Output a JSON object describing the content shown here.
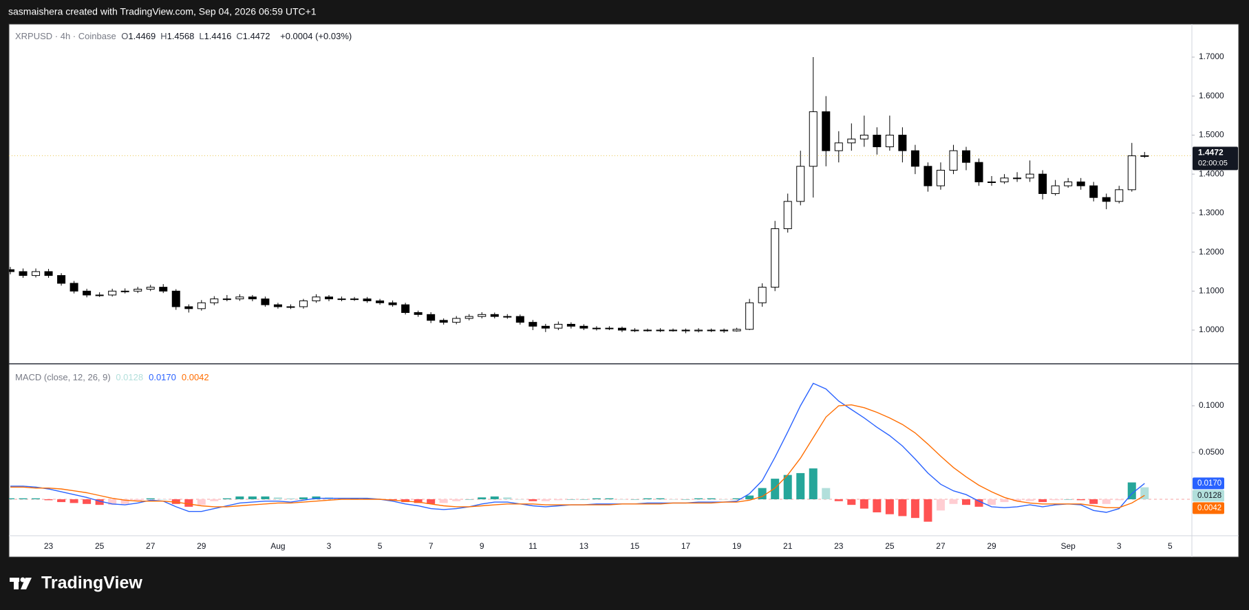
{
  "header": {
    "text": "sasmaishera created with TradingView.com, Sep 04, 2026 06:59 UTC+1"
  },
  "footer": {
    "brand": "TradingView"
  },
  "chart_data": [
    {
      "type": "candlestick",
      "symbol": "XRPUSD · 4h · Coinbase",
      "ohlc_labels": [
        "O",
        "H",
        "L",
        "C"
      ],
      "change_label": "+0.0004 (+0.03%)",
      "countdown": "02:00:05",
      "up_color": "#ffffff",
      "down_color": "#000000",
      "border_color": "#000000",
      "last_price_line_color": "#e8c44a",
      "grid": false,
      "categories": [
        null,
        null,
        null,
        "23",
        null,
        null,
        null,
        "25",
        null,
        null,
        null,
        "27",
        null,
        null,
        null,
        "29",
        null,
        null,
        null,
        null,
        null,
        "Aug",
        null,
        null,
        null,
        "3",
        null,
        null,
        null,
        "5",
        null,
        null,
        null,
        "7",
        null,
        null,
        null,
        "9",
        null,
        null,
        null,
        "11",
        null,
        null,
        null,
        "13",
        null,
        null,
        null,
        "15",
        null,
        null,
        null,
        "17",
        null,
        null,
        null,
        "19",
        null,
        null,
        null,
        "21",
        null,
        null,
        null,
        "23",
        null,
        null,
        null,
        "25",
        null,
        null,
        null,
        "27",
        null,
        null,
        null,
        "29",
        null,
        null,
        null,
        null,
        null,
        "Sep",
        null,
        null,
        null,
        "3",
        null,
        null,
        null,
        "5",
        null
      ],
      "open": [
        1.155,
        1.15,
        1.14,
        1.15,
        1.14,
        1.12,
        1.1,
        1.09,
        1.09,
        1.1,
        1.1,
        1.105,
        1.11,
        1.1,
        1.06,
        1.055,
        1.07,
        1.08,
        1.08,
        1.085,
        1.08,
        1.065,
        1.06,
        1.06,
        1.075,
        1.085,
        1.08,
        1.08,
        1.08,
        1.075,
        1.07,
        1.065,
        1.045,
        1.04,
        1.025,
        1.02,
        1.03,
        1.035,
        1.04,
        1.035,
        1.035,
        1.02,
        1.01,
        1.005,
        1.015,
        1.01,
        1.005,
        1.005,
        1.005,
        1.0,
        1.0,
        1.0,
        1.0,
        1.0,
        0.998,
        1.0,
        1.0,
        0.998,
        1.002,
        1.07,
        1.11,
        1.26,
        1.33,
        1.42,
        1.56,
        1.46,
        1.48,
        1.49,
        1.5,
        1.47,
        1.5,
        1.46,
        1.42,
        1.37,
        1.41,
        1.46,
        1.43,
        1.38,
        1.38,
        1.39,
        1.39,
        1.4,
        1.35,
        1.37,
        1.38,
        1.37,
        1.34,
        1.33,
        1.36,
        1.4469,
        null,
        null,
        null
      ],
      "high": [
        1.162,
        1.158,
        1.158,
        1.157,
        1.146,
        1.126,
        1.106,
        1.097,
        1.106,
        1.107,
        1.111,
        1.116,
        1.118,
        1.105,
        1.066,
        1.077,
        1.087,
        1.09,
        1.092,
        1.09,
        1.086,
        1.07,
        1.066,
        1.08,
        1.092,
        1.09,
        1.086,
        1.085,
        1.085,
        1.08,
        1.076,
        1.07,
        1.05,
        1.046,
        1.03,
        1.036,
        1.041,
        1.046,
        1.045,
        1.041,
        1.04,
        1.026,
        1.016,
        1.022,
        1.02,
        1.015,
        1.01,
        1.01,
        1.009,
        1.005,
        1.004,
        1.005,
        1.004,
        1.004,
        1.005,
        1.004,
        1.004,
        1.006,
        1.08,
        1.12,
        1.28,
        1.35,
        1.46,
        1.7,
        1.6,
        1.51,
        1.53,
        1.55,
        1.52,
        1.55,
        1.52,
        1.475,
        1.43,
        1.43,
        1.475,
        1.47,
        1.44,
        1.395,
        1.4,
        1.405,
        1.435,
        1.41,
        1.385,
        1.39,
        1.39,
        1.38,
        1.35,
        1.37,
        1.48,
        1.4568,
        null,
        null,
        null
      ],
      "low": [
        1.143,
        1.134,
        1.135,
        1.134,
        1.114,
        1.094,
        1.084,
        1.085,
        1.086,
        1.094,
        1.095,
        1.1,
        1.095,
        1.052,
        1.045,
        1.05,
        1.064,
        1.074,
        1.075,
        1.074,
        1.06,
        1.055,
        1.054,
        1.055,
        1.07,
        1.074,
        1.074,
        1.075,
        1.07,
        1.065,
        1.06,
        1.04,
        1.034,
        1.018,
        1.014,
        1.015,
        1.025,
        1.03,
        1.03,
        1.029,
        1.014,
        1.0,
        0.995,
        1.0,
        1.004,
        1.0,
        0.999,
        1.0,
        0.995,
        0.995,
        0.996,
        0.995,
        0.996,
        0.992,
        0.994,
        0.995,
        0.993,
        0.996,
        1.0,
        1.06,
        1.1,
        1.25,
        1.32,
        1.34,
        1.42,
        1.43,
        1.46,
        1.47,
        1.45,
        1.46,
        1.43,
        1.4,
        1.355,
        1.36,
        1.4,
        1.41,
        1.37,
        1.37,
        1.375,
        1.38,
        1.38,
        1.335,
        1.345,
        1.365,
        1.36,
        1.33,
        1.31,
        1.325,
        1.355,
        1.4416,
        null,
        null,
        null
      ],
      "close": [
        1.15,
        1.14,
        1.15,
        1.14,
        1.12,
        1.1,
        1.09,
        1.09,
        1.1,
        1.1,
        1.105,
        1.11,
        1.1,
        1.06,
        1.055,
        1.07,
        1.08,
        1.08,
        1.085,
        1.08,
        1.065,
        1.06,
        1.06,
        1.075,
        1.085,
        1.08,
        1.08,
        1.08,
        1.075,
        1.07,
        1.065,
        1.045,
        1.04,
        1.025,
        1.02,
        1.03,
        1.035,
        1.04,
        1.035,
        1.035,
        1.02,
        1.01,
        1.005,
        1.015,
        1.01,
        1.005,
        1.005,
        1.005,
        1.0,
        1.0,
        1.0,
        1.0,
        1.0,
        0.998,
        1.0,
        1.0,
        0.998,
        1.002,
        1.07,
        1.11,
        1.26,
        1.33,
        1.42,
        1.56,
        1.46,
        1.48,
        1.49,
        1.5,
        1.47,
        1.5,
        1.46,
        1.42,
        1.37,
        1.41,
        1.46,
        1.43,
        1.38,
        1.38,
        1.39,
        1.39,
        1.4,
        1.35,
        1.37,
        1.38,
        1.37,
        1.34,
        1.33,
        1.36,
        1.4469,
        1.4472,
        null,
        null,
        null
      ],
      "ylim": [
        0.9136,
        1.7847
      ],
      "yticks": [
        {
          "value": 1,
          "label": "1.0000"
        },
        {
          "value": 1.1,
          "label": "1.1000"
        },
        {
          "value": 1.2,
          "label": "1.2000"
        },
        {
          "value": 1.3,
          "label": "1.3000"
        },
        {
          "value": 1.4,
          "label": "1.4000"
        },
        {
          "value": 1.5,
          "label": "1.5000"
        },
        {
          "value": 1.6,
          "label": "1.6000"
        },
        {
          "value": 1.7,
          "label": "1.7000"
        }
      ]
    },
    {
      "type": "macd",
      "title": "MACD (close, 12, 26, 9)",
      "grid": false,
      "histogram": {
        "color_up": "#26a69a",
        "color_up_fading": "#b2dfdb",
        "color_down": "#ff5252",
        "color_down_fading": "#ffcdd2",
        "values": [
          0.001,
          0.001,
          0.001,
          -0.001,
          -0.003,
          -0.004,
          -0.005,
          -0.006,
          -0.006,
          -0.005,
          -0.002,
          0.001,
          0,
          -0.005,
          -0.008,
          -0.006,
          -0.002,
          0.001,
          0.003,
          0.003,
          0.003,
          0.002,
          0.001,
          0.002,
          0.003,
          0.002,
          0.001,
          0.001,
          0.001,
          0,
          -0.001,
          -0.003,
          -0.004,
          -0.005,
          -0.004,
          -0.002,
          0,
          0.002,
          0.003,
          0.002,
          0,
          -0.002,
          -0.002,
          -0.001,
          0,
          0,
          0.001,
          0.001,
          0,
          0,
          0.001,
          0.001,
          0,
          0,
          0.001,
          0.001,
          0,
          0.001,
          0.004,
          0.012,
          0.022,
          0.026,
          0.028,
          0.033,
          0.012,
          -0.002,
          -0.006,
          -0.01,
          -0.014,
          -0.016,
          -0.018,
          -0.02,
          -0.024,
          -0.012,
          -0.005,
          -0.006,
          -0.008,
          -0.006,
          -0.003,
          -0.002,
          -0.002,
          -0.003,
          -0.001,
          0,
          -0.001,
          -0.005,
          -0.005,
          -0.001,
          0.018,
          0.0128,
          null,
          null,
          null
        ]
      },
      "macd": {
        "color": "#2962ff",
        "values": [
          0.014,
          0.014,
          0.013,
          0.011,
          0.008,
          0.005,
          0.002,
          -0.002,
          -0.005,
          -0.006,
          -0.004,
          -0.001,
          -0.002,
          -0.008,
          -0.013,
          -0.013,
          -0.01,
          -0.007,
          -0.004,
          -0.003,
          -0.002,
          -0.002,
          -0.003,
          -0.001,
          0.001,
          0.001,
          0.001,
          0.001,
          0.001,
          0,
          -0.002,
          -0.005,
          -0.007,
          -0.01,
          -0.011,
          -0.01,
          -0.008,
          -0.005,
          -0.003,
          -0.003,
          -0.005,
          -0.007,
          -0.008,
          -0.007,
          -0.006,
          -0.006,
          -0.005,
          -0.005,
          -0.005,
          -0.005,
          -0.004,
          -0.004,
          -0.004,
          -0.004,
          -0.003,
          -0.003,
          -0.003,
          -0.002,
          0.006,
          0.02,
          0.045,
          0.072,
          0.1,
          0.124,
          0.118,
          0.105,
          0.096,
          0.087,
          0.077,
          0.068,
          0.057,
          0.043,
          0.028,
          0.016,
          0.009,
          0.005,
          -0.002,
          -0.008,
          -0.009,
          -0.008,
          -0.006,
          -0.008,
          -0.006,
          -0.005,
          -0.006,
          -0.012,
          -0.014,
          -0.01,
          0.006,
          0.017,
          null,
          null,
          null
        ],
        "value_labels": [
          null,
          null,
          null,
          null,
          null,
          null,
          null,
          null,
          null,
          null,
          null,
          null,
          null,
          null,
          null,
          null,
          null,
          null,
          null,
          null,
          null,
          null,
          null,
          null,
          null,
          null,
          null,
          null,
          null,
          null,
          null,
          null,
          null,
          null,
          null,
          null,
          null,
          null,
          null,
          null,
          null,
          null,
          null,
          null,
          null,
          null,
          null,
          null,
          null,
          null,
          null,
          null,
          null,
          null,
          null,
          null,
          null,
          null,
          null,
          null,
          null,
          null,
          null,
          null,
          null,
          null,
          null,
          null,
          null,
          null,
          null,
          null,
          null,
          null,
          null,
          null,
          null,
          null,
          null,
          null,
          null,
          null,
          null,
          null,
          null,
          null,
          null,
          null,
          null,
          "0.0170",
          null,
          null,
          null
        ]
      },
      "signal": {
        "color": "#ff6d00",
        "values": [
          0.013,
          0.013,
          0.012,
          0.012,
          0.011,
          0.009,
          0.007,
          0.004,
          0.001,
          -0.001,
          -0.002,
          -0.002,
          -0.002,
          -0.003,
          -0.005,
          -0.007,
          -0.008,
          -0.008,
          -0.007,
          -0.006,
          -0.005,
          -0.004,
          -0.004,
          -0.003,
          -0.002,
          -0.001,
          0,
          0,
          0,
          0,
          -0.001,
          -0.002,
          -0.003,
          -0.005,
          -0.007,
          -0.008,
          -0.008,
          -0.007,
          -0.006,
          -0.005,
          -0.005,
          -0.005,
          -0.006,
          -0.006,
          -0.006,
          -0.006,
          -0.006,
          -0.006,
          -0.005,
          -0.005,
          -0.005,
          -0.005,
          -0.004,
          -0.004,
          -0.004,
          -0.004,
          -0.003,
          -0.003,
          -0.001,
          0.003,
          0.012,
          0.026,
          0.044,
          0.066,
          0.088,
          0.1,
          0.101,
          0.098,
          0.093,
          0.087,
          0.08,
          0.071,
          0.059,
          0.046,
          0.034,
          0.024,
          0.015,
          0.008,
          0.002,
          -0.002,
          -0.004,
          -0.005,
          -0.005,
          -0.005,
          -0.005,
          -0.007,
          -0.009,
          -0.009,
          -0.004,
          0.0042,
          null,
          null,
          null
        ]
      },
      "ylim": [
        -0.039,
        0.1449
      ],
      "yticks": [
        {
          "value": 0.05,
          "label": "0.0500"
        },
        {
          "value": 0.1,
          "label": "0.1000"
        }
      ]
    }
  ]
}
